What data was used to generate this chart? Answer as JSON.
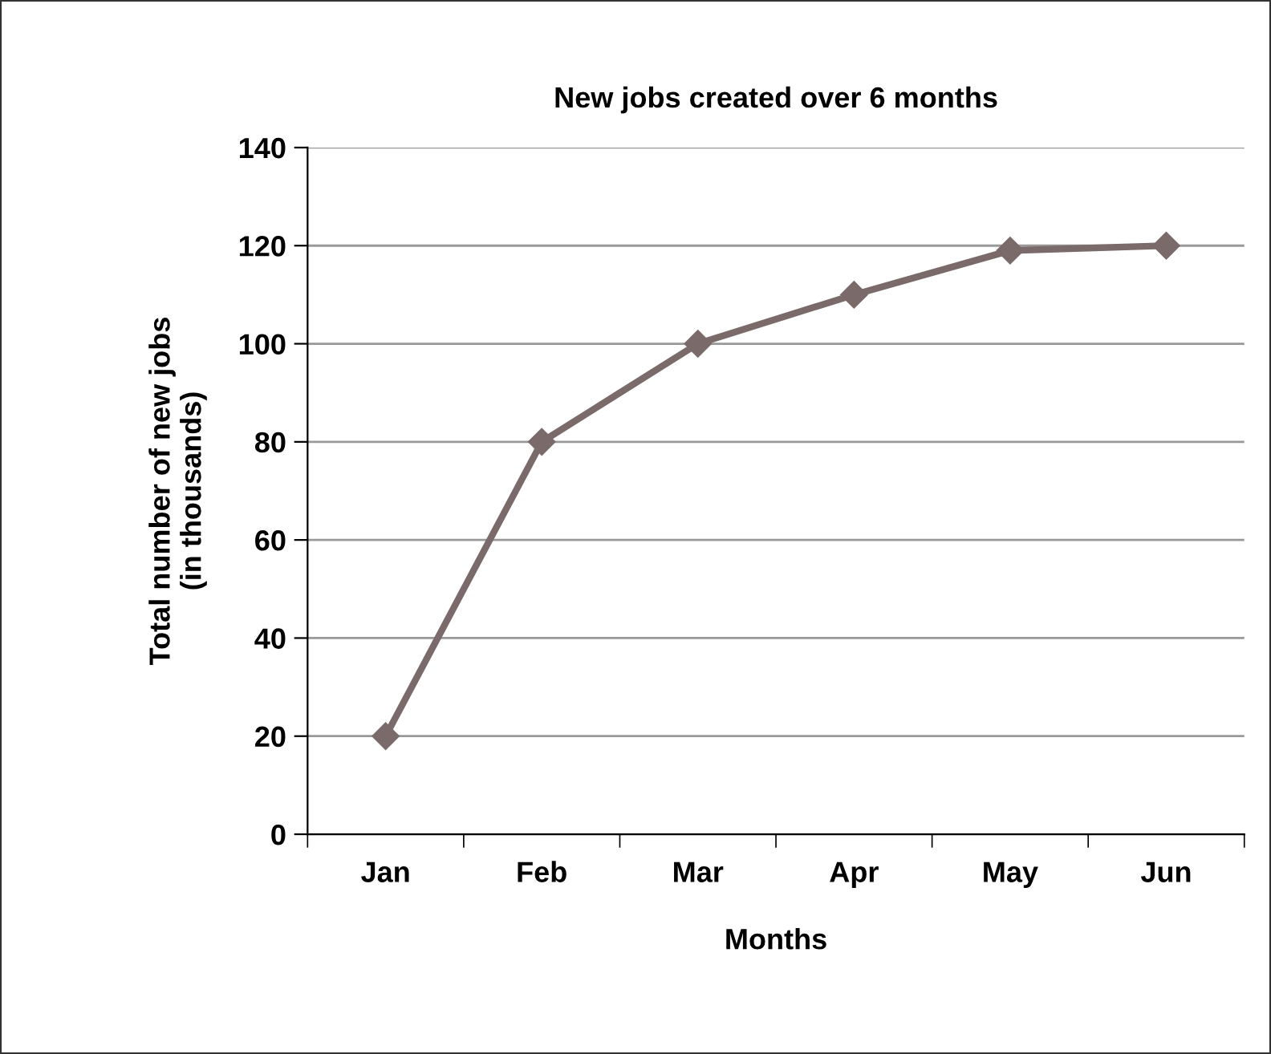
{
  "chart_data": {
    "type": "line",
    "title": "New jobs created over 6 months",
    "xlabel": "Months",
    "ylabel": "Total number of new jobs\n(in thousands)",
    "categories": [
      "Jan",
      "Feb",
      "Mar",
      "Apr",
      "May",
      "Jun"
    ],
    "series": [
      {
        "color": "#7a6a6a",
        "values": [
          20,
          80,
          100,
          110,
          119,
          120
        ]
      }
    ],
    "ylim": [
      0,
      140
    ],
    "yticks": [
      0,
      20,
      40,
      60,
      80,
      100,
      120,
      140
    ],
    "grid": "y",
    "marker": "diamond",
    "line_style": "solid",
    "legend": false
  }
}
